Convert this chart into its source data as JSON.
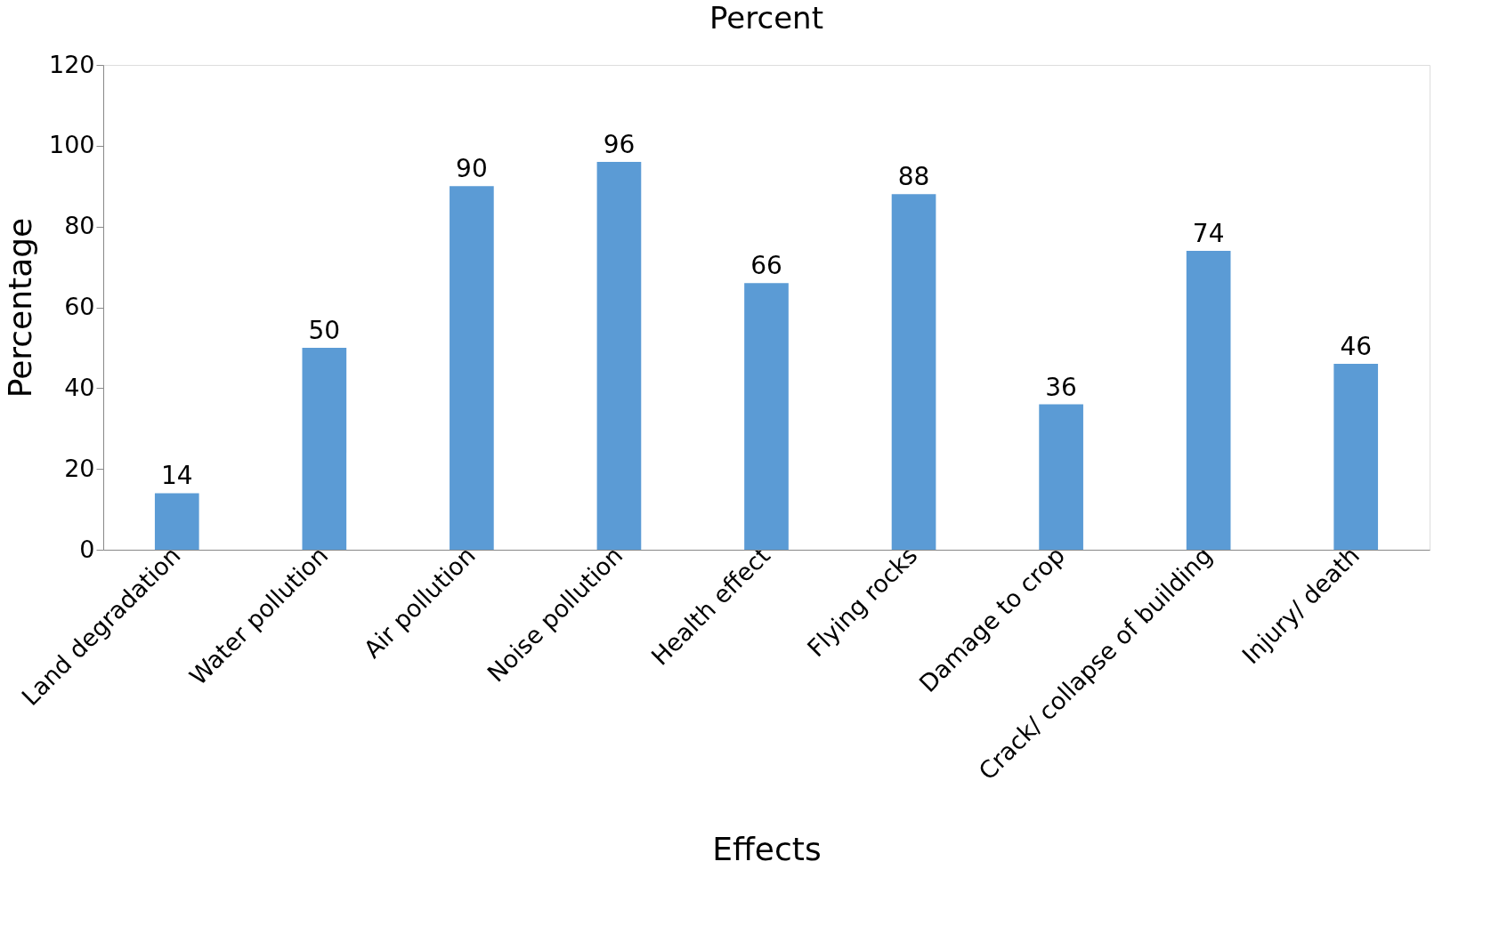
{
  "chart_data": {
    "type": "bar",
    "title": "Percent",
    "xlabel": "Effects",
    "ylabel": "Percentage",
    "categories": [
      "Land degradation",
      "Water pollution",
      "Air pollution",
      "Noise pollution",
      "Health effect",
      "Flying rocks",
      "Damage to crop",
      "Crack/ collapse of building",
      "Injury/ death"
    ],
    "values": [
      14,
      50,
      90,
      96,
      66,
      88,
      36,
      74,
      46
    ],
    "color": "#5b9bd5",
    "ylim": [
      0,
      120
    ],
    "yticks": [
      0,
      20,
      40,
      60,
      80,
      100,
      120
    ],
    "grid": false,
    "data_labels": true
  }
}
